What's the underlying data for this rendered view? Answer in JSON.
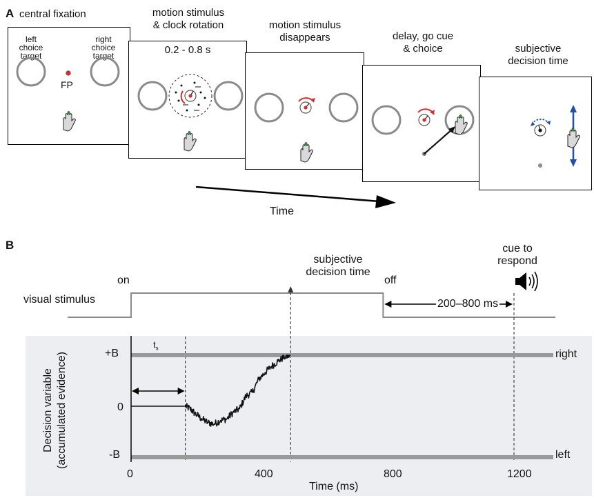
{
  "panel_a": {
    "label": "A",
    "frames": [
      {
        "title": "central fixation",
        "left_target_label": "left\nchoice\ntarget",
        "right_target_label": "right\nchoice\ntarget",
        "fixation_label": "FP"
      },
      {
        "title": "motion stimulus\n& clock rotation",
        "duration": "0.2 - 0.8 s"
      },
      {
        "title": "motion stimulus\ndisappears"
      },
      {
        "title": "delay, go cue\n& choice"
      },
      {
        "title": "subjective\ndecision time"
      }
    ],
    "time_label": "Time"
  },
  "panel_b": {
    "label": "B",
    "stimulus_label": "visual stimulus",
    "on_label": "on",
    "off_label": "off",
    "subjective_label": "subjective\ndecision time",
    "cue_label": "cue to\nrespond",
    "interval_label": "200–800 ms",
    "ts_label": "t",
    "ts_sub": "s",
    "ylabel_line1": "Decision variable",
    "ylabel_line2": "(accumulated evidence)",
    "xlabel": "Time (ms)",
    "bound_upper_label": "+B",
    "zero_label": "0",
    "bound_lower_label": "-B",
    "upper_choice": "right",
    "lower_choice": "left",
    "x_ticks": [
      "0",
      "400",
      "800",
      "1200"
    ]
  },
  "chart_data": {
    "type": "line",
    "xlabel": "Time (ms)",
    "ylabel": "Decision variable (accumulated evidence)",
    "xlim": [
      0,
      1300
    ],
    "ylim": [
      -1,
      1
    ],
    "x_ticks": [
      0,
      400,
      800,
      1200
    ],
    "y_ticks": [
      "-B",
      "0",
      "+B"
    ],
    "bounds": {
      "upper": 1,
      "lower": -1
    },
    "t_s": 170,
    "stimulus_on": 0,
    "stimulus_off": 790,
    "subjective_decision_time": 500,
    "cue_to_respond": 1200,
    "trajectory": {
      "x": [
        0,
        170,
        185,
        200,
        220,
        240,
        260,
        280,
        300,
        320,
        340,
        360,
        380,
        400,
        420,
        440,
        460,
        480,
        500
      ],
      "y": [
        0,
        0,
        -0.05,
        -0.14,
        -0.24,
        -0.32,
        -0.35,
        -0.28,
        -0.25,
        -0.12,
        -0.05,
        0.2,
        0.27,
        0.53,
        0.66,
        0.78,
        0.88,
        0.96,
        1.0
      ]
    }
  }
}
